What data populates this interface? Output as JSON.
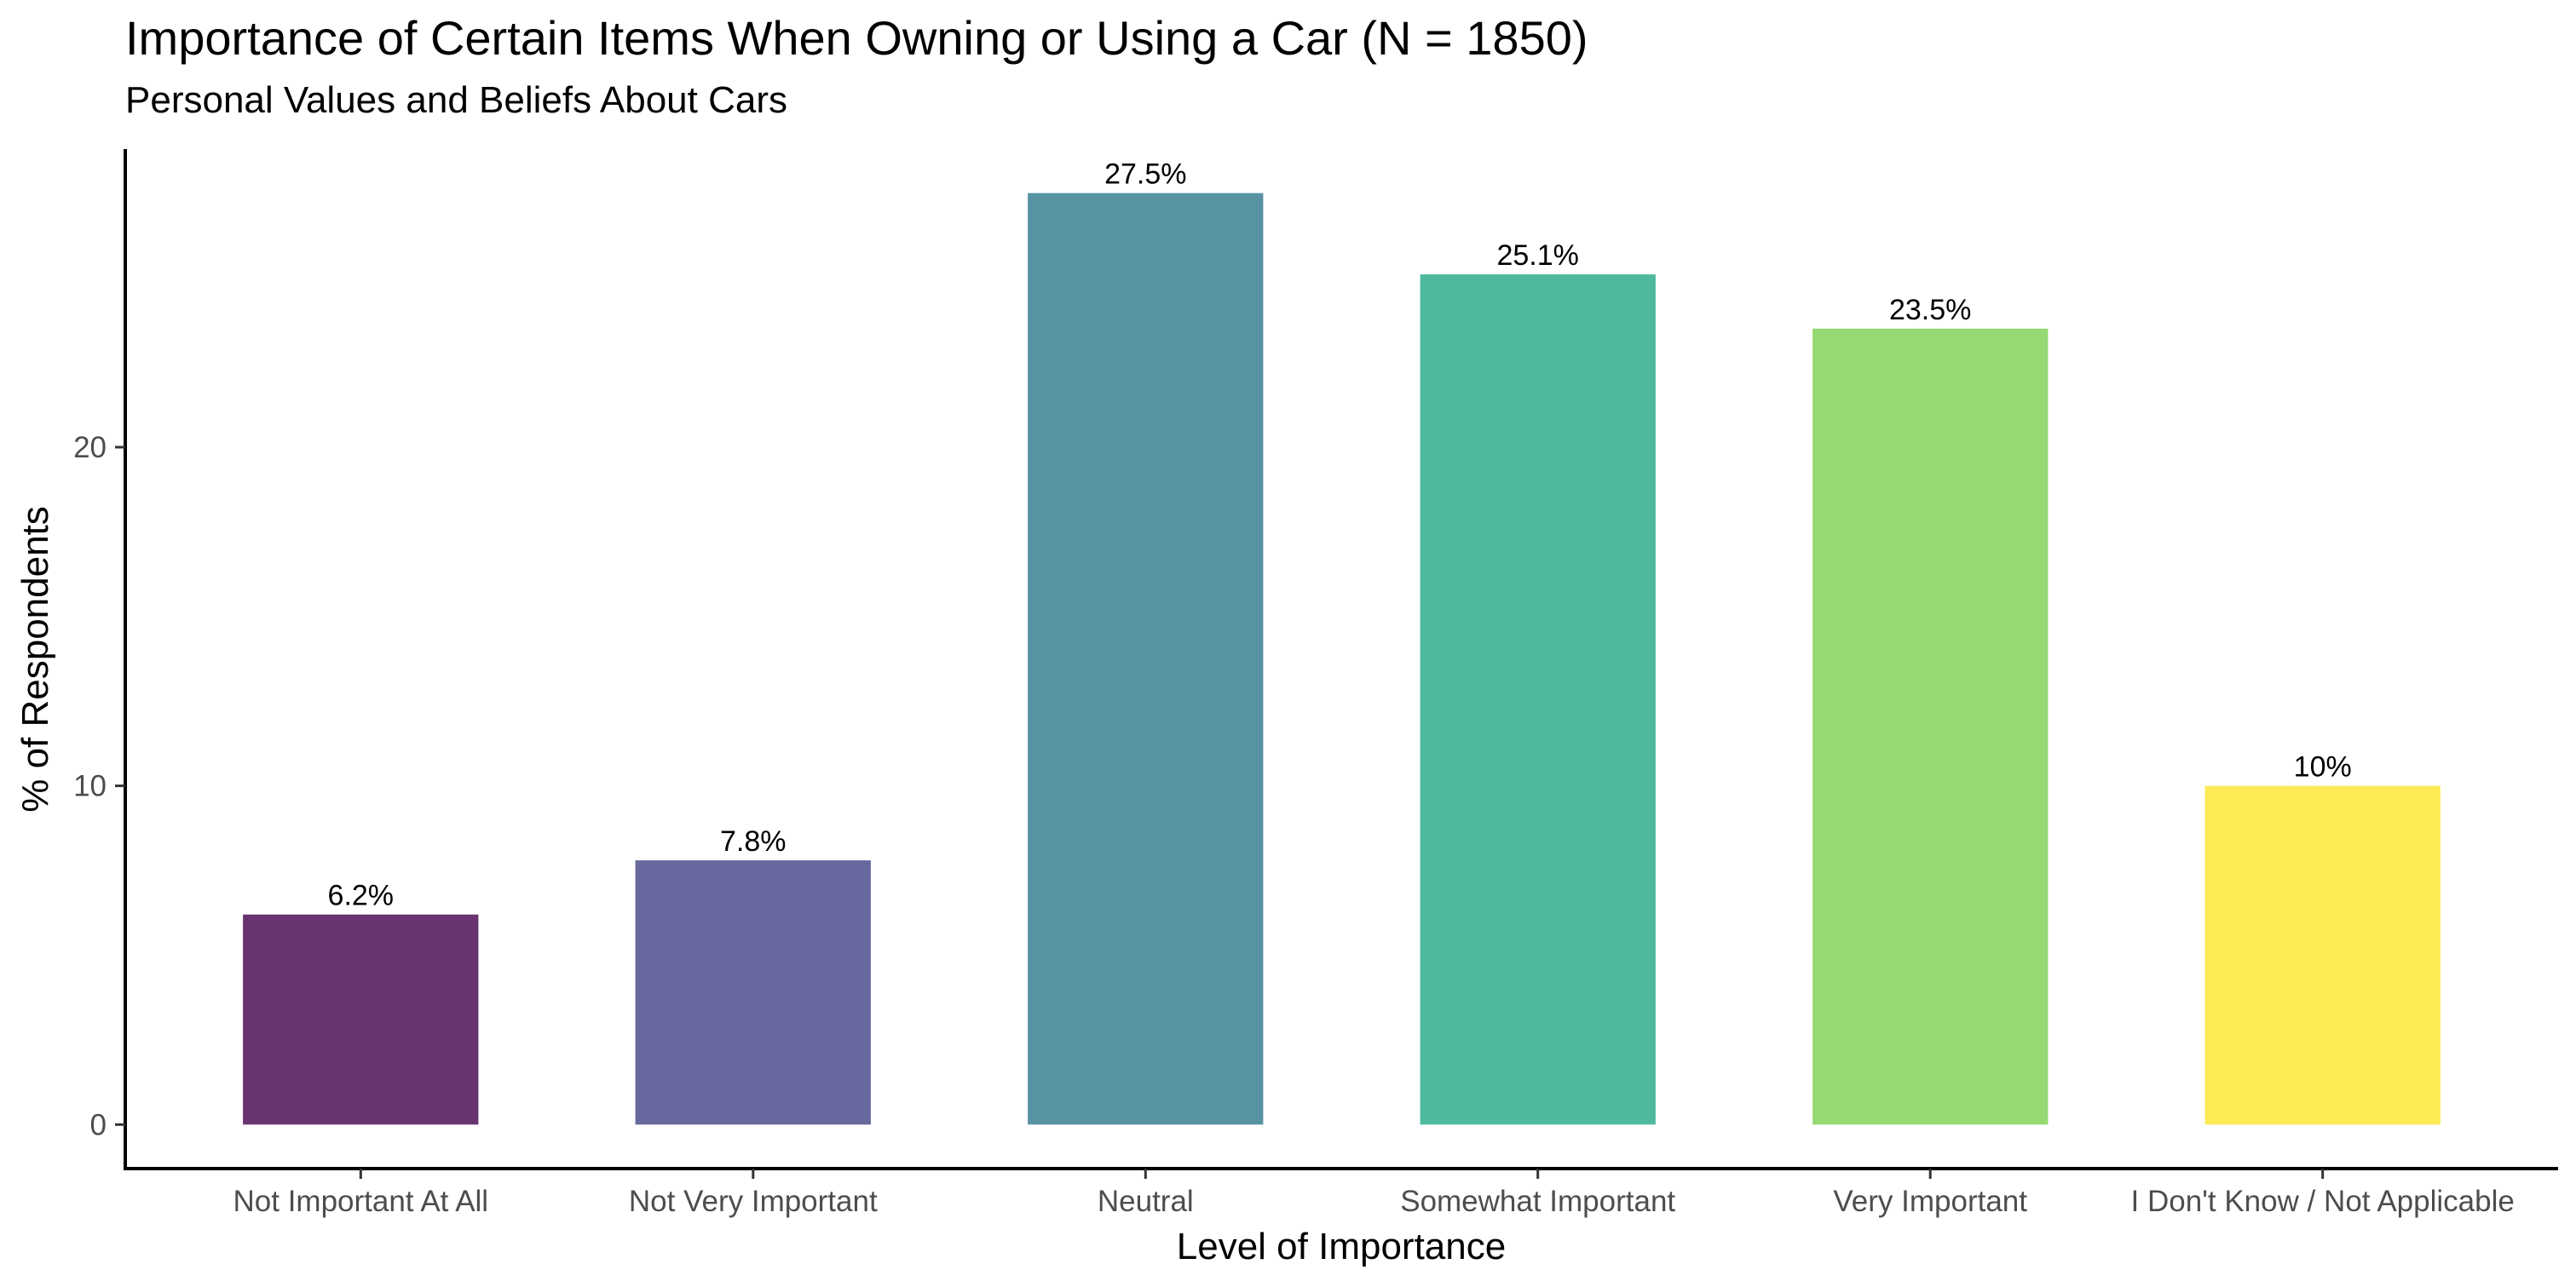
{
  "chart_data": {
    "type": "bar",
    "title": "Importance of Certain Items When Owning or Using a Car (N = 1850)",
    "subtitle": "Personal Values and Beliefs About Cars",
    "xlabel": "Level of Importance",
    "ylabel": "% of Respondents",
    "categories": [
      "Not Important At All",
      "Not Very Important",
      "Neutral",
      "Somewhat Important",
      "Very Important",
      "I Don't Know / Not Applicable"
    ],
    "values": [
      6.2,
      7.8,
      27.5,
      25.1,
      23.5,
      10
    ],
    "value_labels": [
      "6.2%",
      "7.8%",
      "27.5%",
      "25.1%",
      "23.5%",
      "10%"
    ],
    "colors": [
      "#68336f",
      "#67689d",
      "#5893a4",
      "#4fb99e",
      "#96d973",
      "#fdeb55"
    ],
    "ylim": [
      -1.3,
      28.8
    ],
    "yticks": [
      0,
      10,
      20
    ],
    "grid": false,
    "legend": "none"
  }
}
